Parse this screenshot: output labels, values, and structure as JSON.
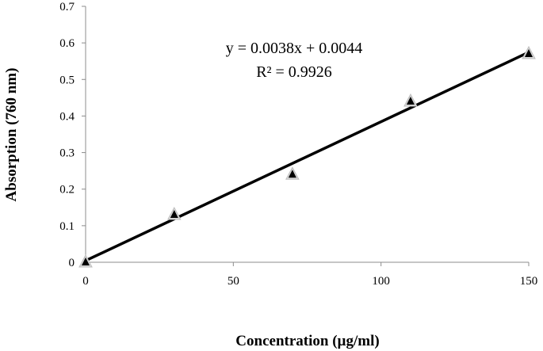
{
  "chart_data": {
    "type": "scatter",
    "title": "",
    "xlabel": "Concentration (µg/ml)",
    "ylabel": "Absorption (760 nm)",
    "xlim": [
      0,
      150
    ],
    "ylim": [
      0,
      0.7
    ],
    "x_ticks": [
      "0",
      "50",
      "100",
      "150"
    ],
    "y_ticks": [
      "0",
      "0.1",
      "0.2",
      "0.3",
      "0.4",
      "0.5",
      "0.6",
      "0.7"
    ],
    "x_tick_values": [
      0,
      50,
      100,
      150
    ],
    "y_tick_values": [
      0,
      0.1,
      0.2,
      0.3,
      0.4,
      0.5,
      0.6,
      0.7
    ],
    "grid": false,
    "legend": "none",
    "series": [
      {
        "marker": "triangle",
        "x": [
          0,
          30,
          70,
          110,
          150
        ],
        "y": [
          0,
          0.13,
          0.24,
          0.44,
          0.57
        ]
      }
    ],
    "trendline": {
      "slope": 0.0038,
      "intercept": 0.0044,
      "x_range": [
        0,
        150
      ],
      "equation": "y = 0.0038x + 0.0044",
      "r_squared": "R² = 0.9926"
    },
    "colors": {
      "axis": "#8c8c8c",
      "line": "#000000",
      "marker": "#000000"
    }
  }
}
